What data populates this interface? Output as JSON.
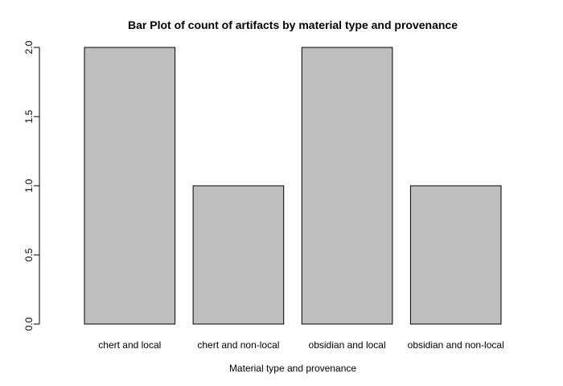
{
  "chart_data": {
    "type": "bar",
    "title": "Bar Plot of count of artifacts by material type and provenance",
    "xlabel": "Material type and provenance",
    "ylabel": "",
    "categories": [
      "chert and local",
      "chert and non-local",
      "obsidian and local",
      "obsidian and non-local"
    ],
    "values": [
      2,
      1,
      2,
      1
    ],
    "ylim": [
      0,
      2
    ],
    "yticks": [
      "0.0",
      "0.5",
      "1.0",
      "1.5",
      "2.0"
    ],
    "bar_color": "#bebebe",
    "grid": false,
    "legend": "none"
  }
}
